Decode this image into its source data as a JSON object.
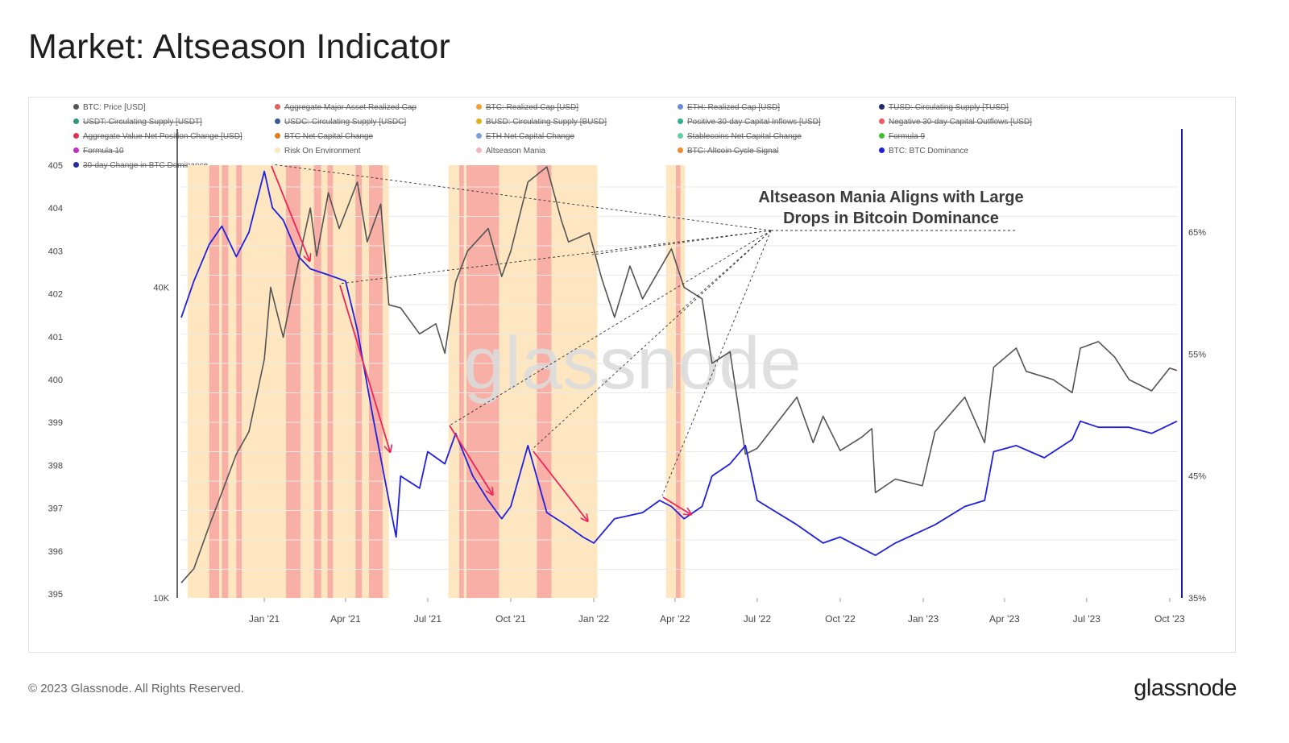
{
  "title": "Market: Altseason Indicator",
  "footer": {
    "copyright": "© 2023 Glassnode. All Rights Reserved.",
    "logo": "glassnode"
  },
  "legend": [
    {
      "label": "BTC: Price [USD]",
      "color": "#555555",
      "active": true
    },
    {
      "label": "Aggregate Major Asset Realized Cap",
      "color": "#e06060",
      "active": false
    },
    {
      "label": "BTC: Realized Cap [USD]",
      "color": "#f0a030",
      "active": false
    },
    {
      "label": "ETH: Realized Cap [USD]",
      "color": "#6a8ad8",
      "active": false
    },
    {
      "label": "TUSD: Circulating Supply [TUSD]",
      "color": "#1e2a6a",
      "active": false
    },
    {
      "label": "USDT: Circulating Supply [USDT]",
      "color": "#2a9a7a",
      "active": false
    },
    {
      "label": "USDC: Circulating Supply [USDC]",
      "color": "#3a5a9a",
      "active": false
    },
    {
      "label": "BUSD: Circulating Supply [BUSD]",
      "color": "#e0b020",
      "active": false
    },
    {
      "label": "Positive 30-day Capital Inflows [USD]",
      "color": "#30b090",
      "active": false
    },
    {
      "label": "Negative 30-day Capital Outflows [USD]",
      "color": "#f05a5a",
      "active": false
    },
    {
      "label": "Aggregate Value Net Position Change [USD]",
      "color": "#e03050",
      "active": false
    },
    {
      "label": "BTC Net Capital Change",
      "color": "#e07a20",
      "active": false
    },
    {
      "label": "ETH Net Capital Change",
      "color": "#7aa0e0",
      "active": false
    },
    {
      "label": "Stablecoins Net Capital Change",
      "color": "#60d0a0",
      "active": false
    },
    {
      "label": "Formula 9",
      "color": "#40c030",
      "active": false
    },
    {
      "label": "Formula 10",
      "color": "#c030c0",
      "active": false
    },
    {
      "label": "Risk On Environment",
      "color": "#fde6c0",
      "active": true
    },
    {
      "label": "Altseason Mania",
      "color": "#f5b5c0",
      "active": true
    },
    {
      "label": "BTC: Altcoin Cycle Signal",
      "color": "#f08a30",
      "active": false
    },
    {
      "label": "BTC: BTC Dominance",
      "color": "#2020e0",
      "active": true
    },
    {
      "label": "30-day Change in BTC Dominance",
      "color": "#2a2aa0",
      "active": false
    }
  ],
  "annotation": {
    "line1": "Altseason Mania Aligns with Large",
    "line2": "Drops in Bitcoin Dominance"
  },
  "watermark": "glassnode",
  "colors": {
    "price": "#555555",
    "dominance": "#2020e0",
    "risk_on": "#fde6c0",
    "mania": "#f7a8a2",
    "arrow": "#f0245a",
    "right_axis": "#1a1aa8"
  },
  "chart_data": {
    "type": "line",
    "x_ticks": [
      "Jan '21",
      "Apr '21",
      "Jul '21",
      "Oct '21",
      "Jan '22",
      "Apr '22",
      "Jul '22",
      "Oct '22",
      "Jan '23",
      "Apr '23",
      "Jul '23",
      "Oct '23"
    ],
    "x_range": [
      "2020-10-01",
      "2023-10-10"
    ],
    "y_far_left": {
      "ticks": [
        "395",
        "396",
        "397",
        "398",
        "399",
        "400",
        "401",
        "402",
        "403",
        "404",
        "405"
      ],
      "range": [
        395,
        405
      ]
    },
    "y_left": {
      "ticks": [
        "10K",
        "40K"
      ],
      "scale": "log",
      "range": [
        10000,
        69000
      ]
    },
    "y_right": {
      "ticks": [
        "35%",
        "45%",
        "55%",
        "65%"
      ],
      "range": [
        35,
        70.5
      ]
    },
    "series": [
      {
        "name": "BTC: Price [USD]",
        "axis": "left",
        "points": [
          [
            "2020-10-01",
            10700
          ],
          [
            "2020-10-15",
            11400
          ],
          [
            "2020-11-01",
            13800
          ],
          [
            "2020-11-15",
            16000
          ],
          [
            "2020-12-01",
            19000
          ],
          [
            "2020-12-15",
            21000
          ],
          [
            "2021-01-01",
            29000
          ],
          [
            "2021-01-08",
            40000
          ],
          [
            "2021-01-22",
            32000
          ],
          [
            "2021-02-08",
            45000
          ],
          [
            "2021-02-21",
            57000
          ],
          [
            "2021-02-28",
            46000
          ],
          [
            "2021-03-13",
            61000
          ],
          [
            "2021-03-25",
            52000
          ],
          [
            "2021-04-14",
            64000
          ],
          [
            "2021-04-25",
            49000
          ],
          [
            "2021-05-10",
            58000
          ],
          [
            "2021-05-19",
            37000
          ],
          [
            "2021-06-01",
            36500
          ],
          [
            "2021-06-22",
            32500
          ],
          [
            "2021-07-10",
            34000
          ],
          [
            "2021-07-20",
            29800
          ],
          [
            "2021-08-01",
            41000
          ],
          [
            "2021-08-14",
            47000
          ],
          [
            "2021-09-06",
            52000
          ],
          [
            "2021-09-21",
            42000
          ],
          [
            "2021-10-01",
            47000
          ],
          [
            "2021-10-20",
            64000
          ],
          [
            "2021-11-10",
            68500
          ],
          [
            "2021-11-26",
            54000
          ],
          [
            "2021-12-04",
            49000
          ],
          [
            "2021-12-27",
            51000
          ],
          [
            "2022-01-10",
            41500
          ],
          [
            "2022-01-24",
            35000
          ],
          [
            "2022-02-10",
            44000
          ],
          [
            "2022-02-24",
            38000
          ],
          [
            "2022-03-28",
            47500
          ],
          [
            "2022-04-11",
            40000
          ],
          [
            "2022-05-01",
            38000
          ],
          [
            "2022-05-12",
            28500
          ],
          [
            "2022-06-01",
            30000
          ],
          [
            "2022-06-18",
            19000
          ],
          [
            "2022-07-01",
            19500
          ],
          [
            "2022-08-14",
            24500
          ],
          [
            "2022-09-01",
            20000
          ],
          [
            "2022-09-12",
            22500
          ],
          [
            "2022-10-01",
            19300
          ],
          [
            "2022-10-25",
            20500
          ],
          [
            "2022-11-05",
            21300
          ],
          [
            "2022-11-09",
            16000
          ],
          [
            "2022-12-01",
            17000
          ],
          [
            "2022-12-31",
            16500
          ],
          [
            "2023-01-14",
            21000
          ],
          [
            "2023-02-16",
            24500
          ],
          [
            "2023-03-10",
            20000
          ],
          [
            "2023-03-20",
            28000
          ],
          [
            "2023-04-14",
            30500
          ],
          [
            "2023-04-25",
            27500
          ],
          [
            "2023-05-25",
            26500
          ],
          [
            "2023-06-15",
            25000
          ],
          [
            "2023-06-24",
            30500
          ],
          [
            "2023-07-14",
            31400
          ],
          [
            "2023-08-01",
            29300
          ],
          [
            "2023-08-17",
            26500
          ],
          [
            "2023-09-11",
            25200
          ],
          [
            "2023-10-01",
            27900
          ],
          [
            "2023-10-09",
            27600
          ]
        ]
      },
      {
        "name": "BTC: BTC Dominance",
        "axis": "right",
        "points": [
          [
            "2020-10-01",
            58
          ],
          [
            "2020-10-15",
            61
          ],
          [
            "2020-11-01",
            64
          ],
          [
            "2020-11-15",
            65.5
          ],
          [
            "2020-12-01",
            63
          ],
          [
            "2020-12-15",
            65
          ],
          [
            "2021-01-01",
            70
          ],
          [
            "2021-01-10",
            67
          ],
          [
            "2021-01-22",
            66
          ],
          [
            "2021-02-08",
            63
          ],
          [
            "2021-02-21",
            62
          ],
          [
            "2021-03-13",
            61.5
          ],
          [
            "2021-04-01",
            61
          ],
          [
            "2021-04-14",
            57
          ],
          [
            "2021-05-01",
            50
          ],
          [
            "2021-05-19",
            43
          ],
          [
            "2021-05-27",
            40
          ],
          [
            "2021-06-01",
            45
          ],
          [
            "2021-06-22",
            44
          ],
          [
            "2021-07-01",
            47
          ],
          [
            "2021-07-20",
            46
          ],
          [
            "2021-08-01",
            48.5
          ],
          [
            "2021-08-20",
            45
          ],
          [
            "2021-09-06",
            43
          ],
          [
            "2021-09-21",
            41.5
          ],
          [
            "2021-10-01",
            42.5
          ],
          [
            "2021-10-20",
            47.5
          ],
          [
            "2021-11-10",
            42
          ],
          [
            "2021-12-01",
            41
          ],
          [
            "2021-12-20",
            40
          ],
          [
            "2022-01-01",
            39.5
          ],
          [
            "2022-01-24",
            41.5
          ],
          [
            "2022-02-24",
            42
          ],
          [
            "2022-03-15",
            43
          ],
          [
            "2022-03-28",
            42.5
          ],
          [
            "2022-04-11",
            41.5
          ],
          [
            "2022-05-01",
            42.5
          ],
          [
            "2022-05-12",
            45
          ],
          [
            "2022-06-01",
            46
          ],
          [
            "2022-06-18",
            47.5
          ],
          [
            "2022-07-01",
            43
          ],
          [
            "2022-08-14",
            41
          ],
          [
            "2022-09-12",
            39.5
          ],
          [
            "2022-10-01",
            40
          ],
          [
            "2022-11-09",
            38.5
          ],
          [
            "2022-12-01",
            39.5
          ],
          [
            "2023-01-14",
            41
          ],
          [
            "2023-02-16",
            42.5
          ],
          [
            "2023-03-10",
            43
          ],
          [
            "2023-03-20",
            47
          ],
          [
            "2023-04-14",
            47.5
          ],
          [
            "2023-05-15",
            46.5
          ],
          [
            "2023-06-15",
            48
          ],
          [
            "2023-06-24",
            49.5
          ],
          [
            "2023-07-14",
            49
          ],
          [
            "2023-08-17",
            49
          ],
          [
            "2023-09-11",
            48.5
          ],
          [
            "2023-10-09",
            49.5
          ]
        ]
      }
    ],
    "risk_on_periods": [
      [
        "2020-10-08",
        "2021-05-19"
      ],
      [
        "2021-07-24",
        "2022-01-05"
      ],
      [
        "2022-03-22",
        "2022-04-12"
      ]
    ],
    "altseason_mania_periods": [
      [
        "2020-11-01",
        "2020-11-12"
      ],
      [
        "2020-11-15",
        "2020-11-22"
      ],
      [
        "2020-12-01",
        "2020-12-07"
      ],
      [
        "2021-01-25",
        "2021-02-10"
      ],
      [
        "2021-02-25",
        "2021-03-05"
      ],
      [
        "2021-03-12",
        "2021-03-18"
      ],
      [
        "2021-04-12",
        "2021-04-19"
      ],
      [
        "2021-04-27",
        "2021-05-12"
      ],
      [
        "2021-08-05",
        "2021-08-10"
      ],
      [
        "2021-08-13",
        "2021-09-18"
      ],
      [
        "2021-10-30",
        "2021-11-15"
      ],
      [
        "2022-04-02",
        "2022-04-07"
      ]
    ]
  }
}
